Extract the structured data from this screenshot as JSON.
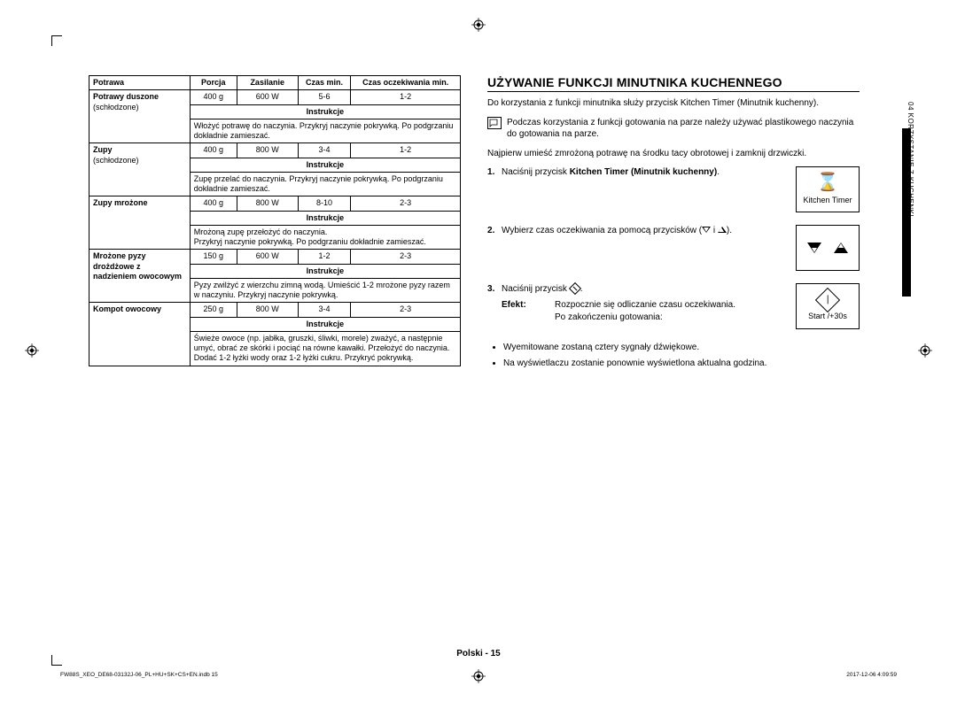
{
  "table": {
    "headers": [
      "Potrawa",
      "Porcja",
      "Zasilanie",
      "Czas min.",
      "Czas oczekiwania min."
    ],
    "rows": [
      {
        "name": "Potrawy duszone",
        "sub": "(schłodzone)",
        "portion": "400 g",
        "power": "600 W",
        "time": "5-6",
        "stand": "1-2",
        "instr_label": "Instrukcje",
        "instr": "Włożyć potrawę do naczynia. Przykryj naczynie pokrywką. Po podgrzaniu dokładnie zamieszać."
      },
      {
        "name": "Zupy",
        "sub": "(schłodzone)",
        "portion": "400 g",
        "power": "800 W",
        "time": "3-4",
        "stand": "1-2",
        "instr_label": "Instrukcje",
        "instr": "Zupę przelać do naczynia. Przykryj naczynie pokrywką. Po podgrzaniu dokładnie zamieszać."
      },
      {
        "name": "Zupy mrożone",
        "sub": "",
        "portion": "400 g",
        "power": "800 W",
        "time": "8-10",
        "stand": "2-3",
        "instr_label": "Instrukcje",
        "instr": "Mrożoną zupę przełożyć do naczynia.\nPrzykryj naczynie pokrywką. Po podgrzaniu dokładnie zamieszać."
      },
      {
        "name": "Mrożone pyzy drożdżowe z nadzieniem owocowym",
        "sub": "",
        "portion": "150 g",
        "power": "600 W",
        "time": "1-2",
        "stand": "2-3",
        "instr_label": "Instrukcje",
        "instr": "Pyzy zwilżyć z wierzchu zimną wodą. Umieścić 1-2 mrożone pyzy razem w naczyniu. Przykryj naczynie pokrywką."
      },
      {
        "name": "Kompot owocowy",
        "sub": "",
        "portion": "250 g",
        "power": "800 W",
        "time": "3-4",
        "stand": "2-3",
        "instr_label": "Instrukcje",
        "instr": "Świeże owoce (np. jabłka, gruszki, śliwki, morele) zważyć, a następnie umyć, obrać ze skórki i pociąć na równe kawałki. Przełożyć do naczynia.\nDodać 1-2 łyżki wody oraz 1-2 łyżki cukru. Przykryć pokrywką."
      }
    ]
  },
  "right": {
    "title": "UŻYWANIE FUNKCJI MINUTNIKA KUCHENNEGO",
    "intro": "Do korzystania z funkcji minutnika służy przycisk Kitchen Timer (Minutnik kuchenny).",
    "note": "Podczas korzystania z funkcji gotowania na parze należy używać plastikowego naczynia do gotowania na parze.",
    "pre": "Najpierw umieść zmrożoną potrawę na środku tacy obrotowej i zamknij drzwiczki.",
    "steps": {
      "s1a": "Naciśnij przycisk ",
      "s1b": "Kitchen Timer (Minutnik kuchenny)",
      "s1c": ".",
      "s2a": "Wybierz czas oczekiwania za pomocą przycisków (",
      "s2b": " i ",
      "s2c": ").",
      "s3a": "Naciśnij przycisk ",
      "s3b": "."
    },
    "efekt_label": "Efekt:",
    "efekt_body": "Rozpocznie się odliczanie czasu oczekiwania.\nPo zakończeniu gotowania:",
    "bullets": [
      "Wyemitowane zostaną cztery sygnały dźwiękowe.",
      "Na wyświetlaczu zostanie ponownie wyświetlona aktualna godzina."
    ],
    "tiles": {
      "timer": "Kitchen Timer",
      "start": "Start /+30s"
    }
  },
  "side_tab": "04  KORZYSTANIE Z KUCHENKI",
  "footer": "Polski - 15",
  "tiny_left": "FW88S_XEO_DE68-03132J-06_PL+HU+SK+CS+EN.indb   15",
  "tiny_right": "2017-12-06    4:09:59"
}
